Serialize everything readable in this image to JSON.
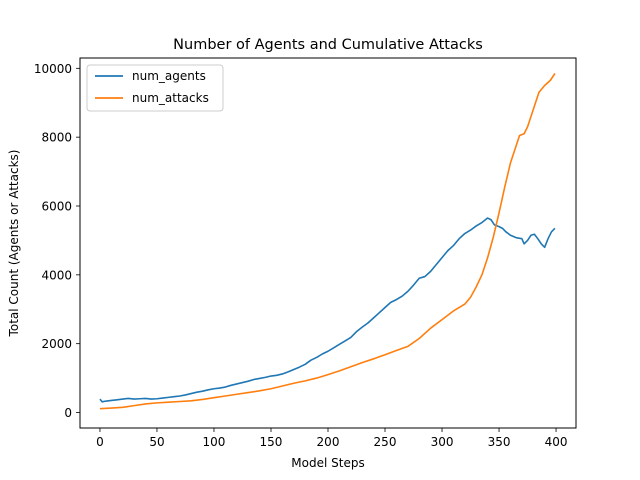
{
  "chart_data": {
    "type": "line",
    "title": "Number of Agents and Cumulative Attacks",
    "xlabel": "Model Steps",
    "ylabel": "Total Count (Agents or Attacks)",
    "xlim": [
      -17.5,
      417.5
    ],
    "ylim": [
      -450,
      10300
    ],
    "xticks": [
      0,
      50,
      100,
      150,
      200,
      250,
      300,
      350,
      400
    ],
    "yticks": [
      0,
      2000,
      4000,
      6000,
      8000,
      10000
    ],
    "grid": false,
    "legend_position": "top-left",
    "series": [
      {
        "name": "num_agents",
        "color": "#1f77b4",
        "x": [
          0,
          2,
          5,
          10,
          15,
          20,
          25,
          30,
          35,
          40,
          45,
          50,
          55,
          60,
          65,
          70,
          75,
          80,
          85,
          90,
          95,
          100,
          105,
          110,
          115,
          120,
          125,
          130,
          135,
          140,
          145,
          150,
          155,
          160,
          165,
          170,
          175,
          180,
          185,
          190,
          195,
          200,
          205,
          210,
          215,
          220,
          225,
          230,
          235,
          240,
          245,
          250,
          255,
          260,
          265,
          270,
          275,
          280,
          285,
          290,
          295,
          300,
          305,
          310,
          315,
          320,
          325,
          330,
          335,
          340,
          343,
          346,
          350,
          353,
          356,
          360,
          365,
          370,
          372,
          375,
          378,
          381,
          384,
          387,
          390,
          393,
          396,
          399
        ],
        "y": [
          390,
          310,
          330,
          350,
          370,
          390,
          410,
          390,
          400,
          410,
          390,
          400,
          420,
          440,
          460,
          480,
          510,
          550,
          590,
          620,
          660,
          690,
          710,
          740,
          790,
          830,
          870,
          910,
          960,
          990,
          1020,
          1060,
          1080,
          1120,
          1180,
          1250,
          1320,
          1400,
          1520,
          1600,
          1700,
          1780,
          1880,
          1980,
          2080,
          2180,
          2350,
          2480,
          2600,
          2750,
          2900,
          3050,
          3200,
          3280,
          3380,
          3520,
          3700,
          3900,
          3950,
          4100,
          4300,
          4500,
          4700,
          4850,
          5050,
          5200,
          5300,
          5420,
          5520,
          5650,
          5600,
          5450,
          5400,
          5350,
          5250,
          5150,
          5080,
          5050,
          4900,
          5000,
          5150,
          5180,
          5050,
          4900,
          4800,
          5050,
          5250,
          5350
        ]
      },
      {
        "name": "num_attacks",
        "color": "#ff7f0e",
        "x": [
          0,
          10,
          20,
          30,
          40,
          50,
          60,
          70,
          80,
          90,
          100,
          110,
          120,
          130,
          140,
          150,
          160,
          170,
          180,
          190,
          200,
          210,
          220,
          230,
          240,
          250,
          260,
          270,
          280,
          290,
          300,
          310,
          320,
          325,
          330,
          335,
          340,
          345,
          350,
          355,
          360,
          365,
          368,
          372,
          375,
          380,
          385,
          390,
          395,
          399
        ],
        "y": [
          110,
          130,
          150,
          200,
          250,
          280,
          300,
          320,
          340,
          380,
          430,
          480,
          530,
          580,
          630,
          690,
          770,
          850,
          920,
          1000,
          1100,
          1210,
          1330,
          1450,
          1560,
          1680,
          1800,
          1920,
          2150,
          2450,
          2700,
          2950,
          3150,
          3350,
          3650,
          4000,
          4500,
          5100,
          5800,
          6550,
          7250,
          7750,
          8050,
          8100,
          8300,
          8800,
          9300,
          9500,
          9650,
          9850
        ]
      }
    ]
  }
}
